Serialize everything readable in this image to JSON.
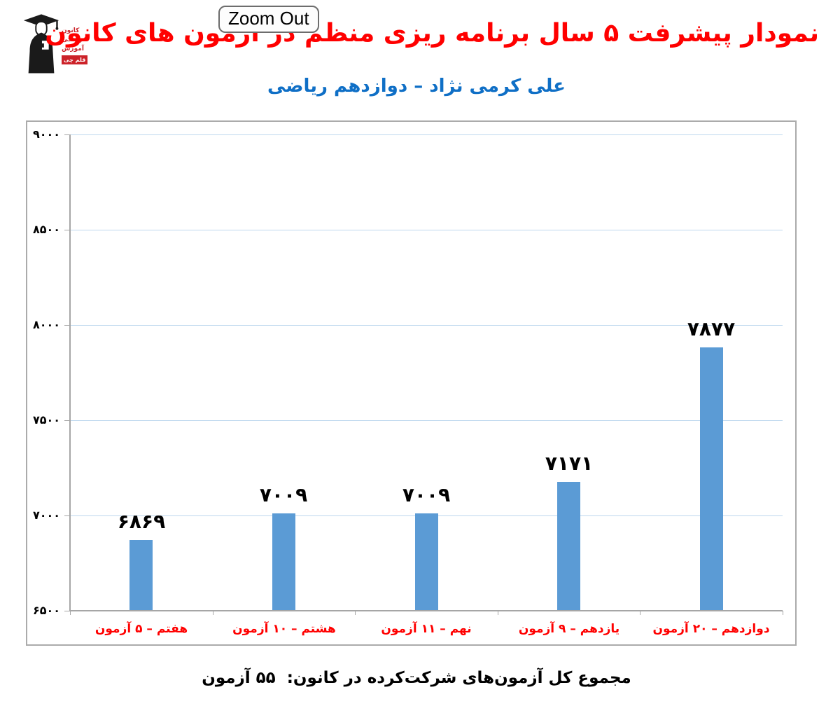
{
  "logo": {
    "line1": "کانون",
    "line2": "فرهنگی",
    "line3": "آموزش",
    "badge": "قلم چی"
  },
  "tooltip": {
    "label": "Zoom Out"
  },
  "header": {
    "title": "نمودار پیشرفت ۵ سال برنامه ریزی منظم در آزمون های کانون",
    "subtitle": "علی کرمی نژاد – دوازدهم ریاضی",
    "title_color": "#ff0000",
    "subtitle_color": "#0f6fc6"
  },
  "chart_data": {
    "type": "bar",
    "title": "نمودار پیشرفت ۵ سال برنامه ریزی منظم در آزمون های کانون",
    "categories": [
      "هفتم – ۵ آزمون",
      "هشتم – ۱۰ آزمون",
      "نهم – ۱۱ آزمون",
      "یازدهم – ۹ آزمون",
      "دوازدهم – ۲۰ آزمون"
    ],
    "values": [
      6869,
      7009,
      7009,
      7171,
      7877
    ],
    "value_labels": [
      "۶۸۶۹",
      "۷۰۰۹",
      "۷۰۰۹",
      "۷۱۷۱",
      "۷۸۷۷"
    ],
    "ylim": [
      6500,
      9000
    ],
    "y_ticks": [
      6500,
      7000,
      7500,
      8000,
      8500,
      9000
    ],
    "y_tick_labels": [
      "۶۵۰۰",
      "۷۰۰۰",
      "۷۵۰۰",
      "۸۰۰۰",
      "۸۵۰۰",
      "۹۰۰۰"
    ],
    "grid": true,
    "legend": false,
    "bar_color": "#5b9bd5",
    "gridline_color": "#bdd7ee",
    "axis_color": "#a6a6a6",
    "category_label_color": "#ff0000",
    "chart_border_color": "#ababab"
  },
  "footer": {
    "text": "مجموع کل آزمون‌های شرکت‌کرده در کانون:  ۵۵ آزمون"
  }
}
